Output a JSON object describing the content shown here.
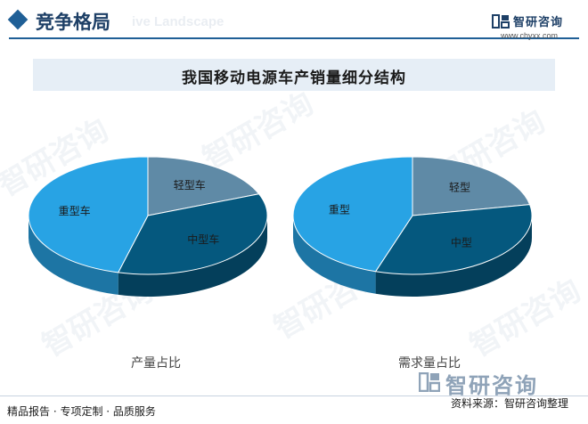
{
  "header": {
    "section_title": "竞争格局",
    "section_ghost": "ive Landscape",
    "brand": "智研咨询",
    "website": "www.chyxx.com"
  },
  "watermark_text": "智研咨询",
  "footer": {
    "left": "精品报告 · 专项定制 · 品质服务",
    "brand": "智研咨询",
    "source": "资料来源：智研咨询整理"
  },
  "colors": {
    "light_blue": "#28a3e4",
    "slate": "#5f8aa6",
    "navy": "#05587e",
    "accent": "#1f5f96"
  },
  "chart_data": {
    "title": "我国移动电源车产销量细分结构",
    "charts": [
      {
        "type": "pie",
        "caption": "产量占比",
        "slices": [
          {
            "label": "轻型车",
            "value": 0.19,
            "color": "#5f8aa6"
          },
          {
            "label": "中型车",
            "value": 0.35,
            "color": "#05587e"
          },
          {
            "label": "重型车",
            "value": 0.46,
            "color": "#28a3e4"
          }
        ]
      },
      {
        "type": "pie",
        "caption": "需求量占比",
        "slices": [
          {
            "label": "轻型",
            "value": 0.22,
            "color": "#5f8aa6"
          },
          {
            "label": "中型",
            "value": 0.33,
            "color": "#05587e"
          },
          {
            "label": "重型",
            "value": 0.45,
            "color": "#28a3e4"
          }
        ]
      }
    ]
  }
}
